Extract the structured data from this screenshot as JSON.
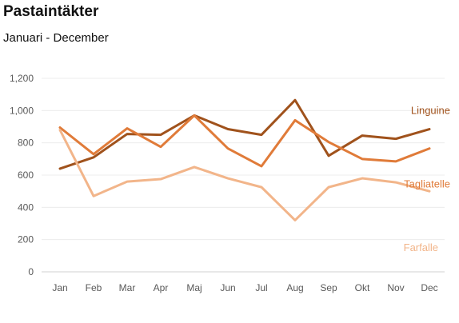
{
  "chart_data": {
    "type": "line",
    "title": "Pastaintäkter",
    "subtitle": "Januari - December",
    "xlabel": "",
    "ylabel": "",
    "ylim": [
      0,
      1200
    ],
    "yticks": [
      "0",
      "200",
      "400",
      "600",
      "800",
      "1,000",
      "1,200"
    ],
    "ytick_values": [
      0,
      200,
      400,
      600,
      800,
      1000,
      1200
    ],
    "grid": true,
    "legend": "inline-right",
    "categories": [
      "Jan",
      "Feb",
      "Mar",
      "Apr",
      "Maj",
      "Jun",
      "Jul",
      "Aug",
      "Sep",
      "Okt",
      "Nov",
      "Dec"
    ],
    "series": [
      {
        "name": "Linguine",
        "color": "#A0521C",
        "values": [
          640,
          710,
          855,
          850,
          970,
          885,
          850,
          1065,
          720,
          845,
          825,
          885
        ]
      },
      {
        "name": "Tagliatelle",
        "color": "#E07B39",
        "values": [
          895,
          730,
          890,
          775,
          970,
          765,
          655,
          940,
          805,
          700,
          685,
          765
        ]
      },
      {
        "name": "Farfalle",
        "color": "#F2B58A",
        "values": [
          880,
          470,
          560,
          575,
          650,
          580,
          525,
          320,
          525,
          580,
          555,
          500
        ]
      }
    ]
  }
}
